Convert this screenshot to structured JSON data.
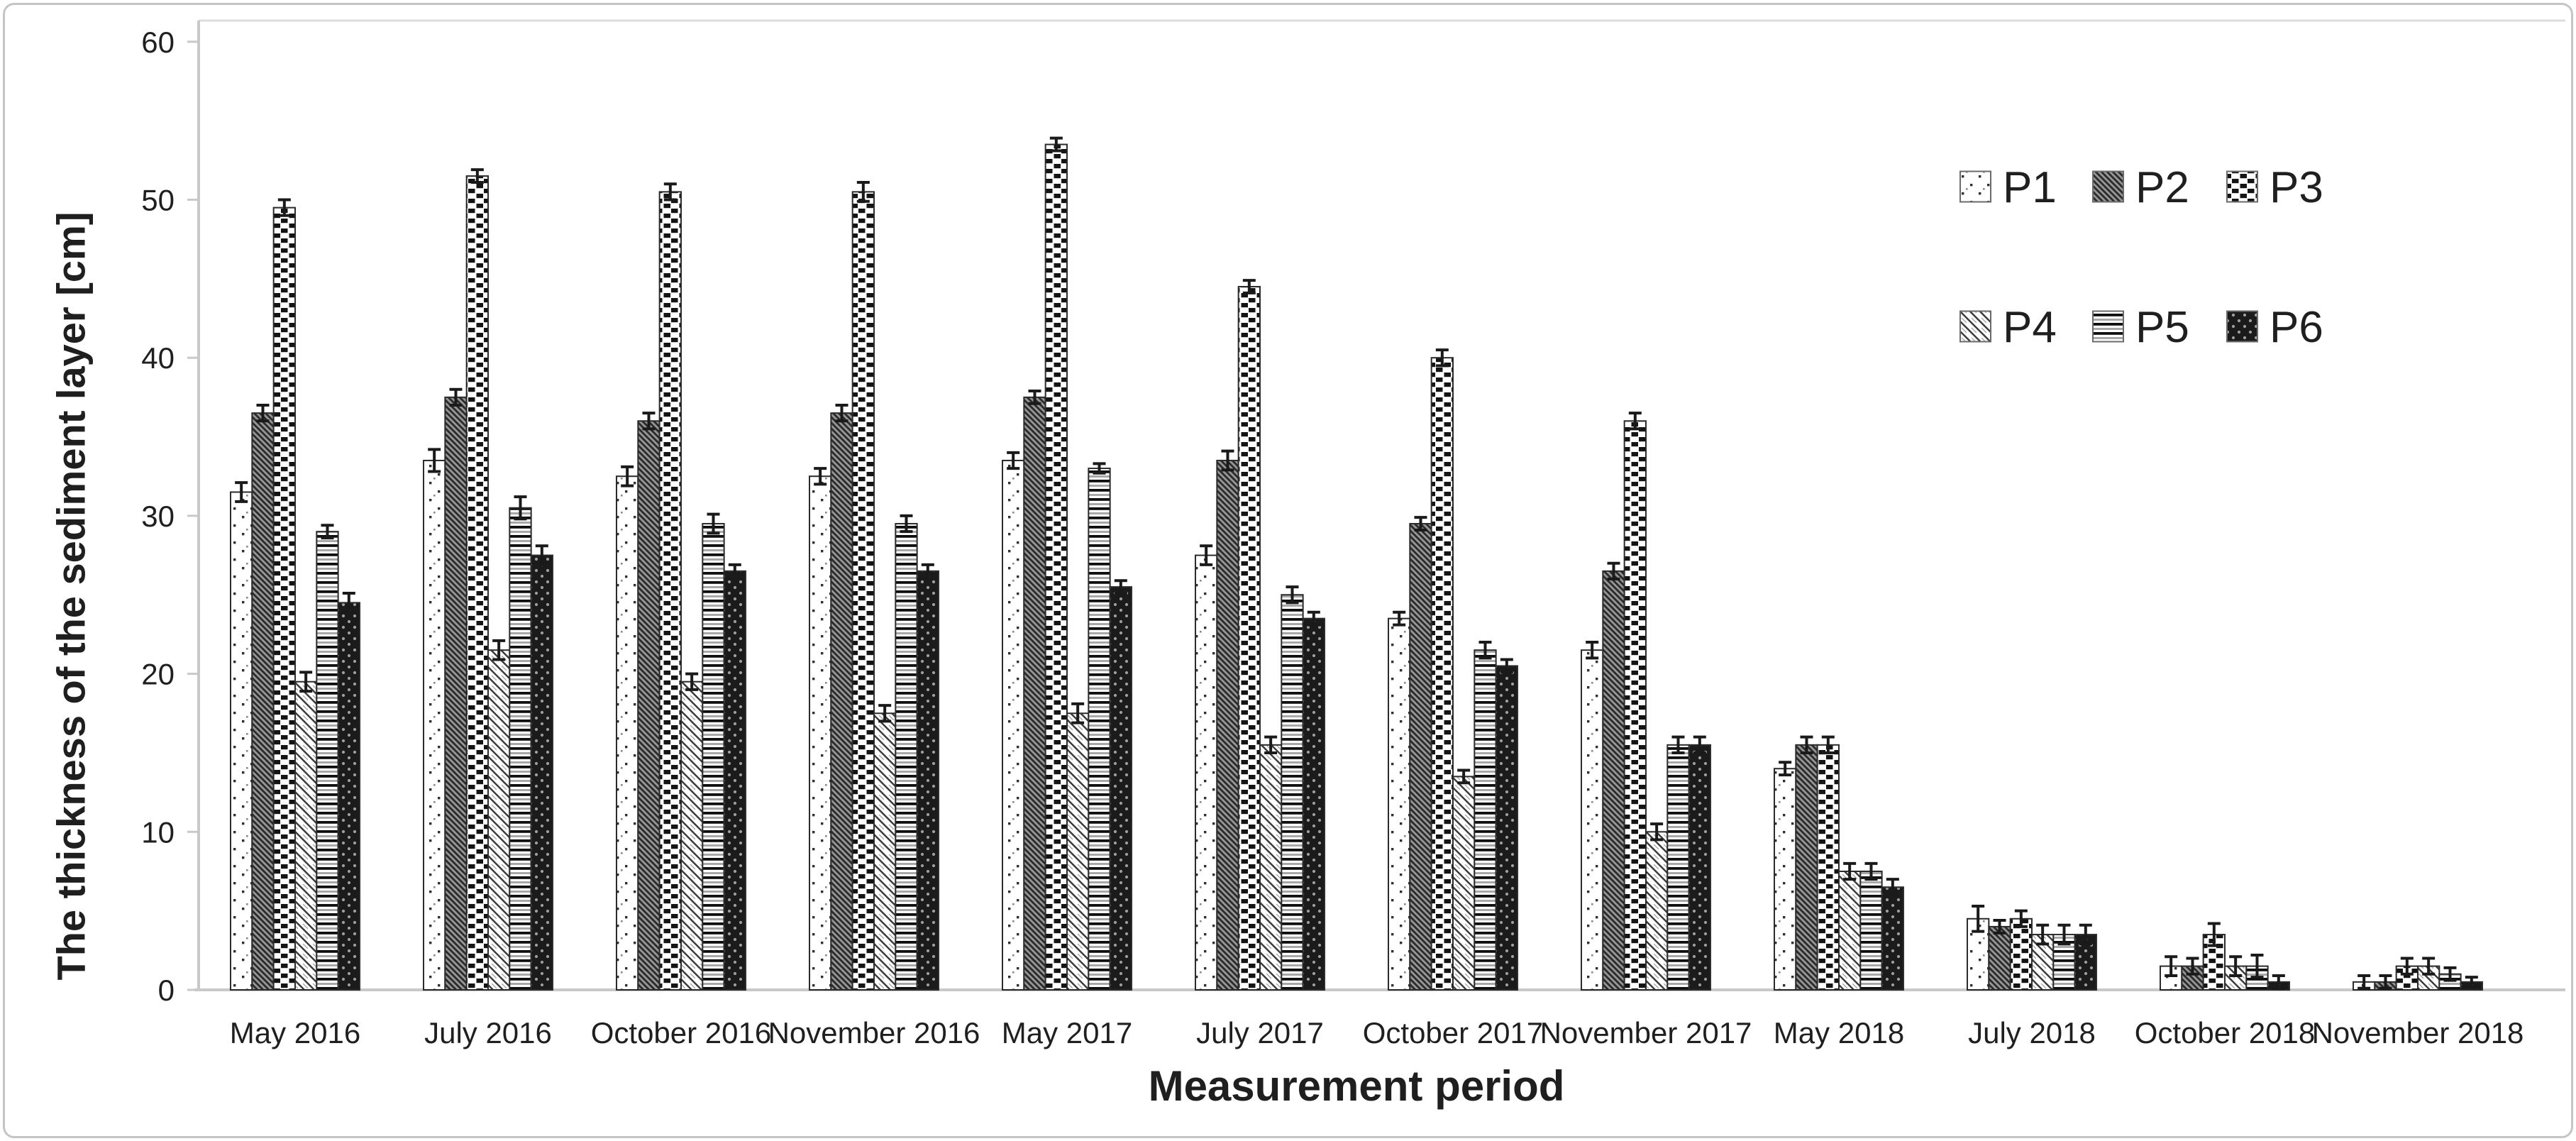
{
  "figure": {
    "background": "#ffffff",
    "border_color": "#c5c5c5"
  },
  "chart_data": {
    "type": "bar",
    "title": "",
    "xlabel": "Measurement period",
    "ylabel": "The thickness of the sediment layer [cm]",
    "ylim": [
      0,
      60
    ],
    "yticks": [
      0,
      10,
      20,
      30,
      40,
      50,
      60
    ],
    "grid": false,
    "error_bars": true,
    "legend_position": "top-right two rows",
    "legend_rows": [
      [
        "P1",
        "P2",
        "P3"
      ],
      [
        "P4",
        "P5",
        "P6"
      ]
    ],
    "categories": [
      "May 2016",
      "July 2016",
      "October 2016",
      "November 2016",
      "May 2017",
      "July 2017",
      "October 2017",
      "November 2017",
      "May 2018",
      "July 2018",
      "October 2018",
      "November 2018"
    ],
    "series": [
      {
        "name": "P1",
        "pattern": "sparse-dots-on-white",
        "values": [
          31.5,
          33.5,
          32.5,
          32.5,
          33.5,
          27.5,
          23.5,
          21.5,
          14,
          4.5,
          1.5,
          0.5
        ],
        "errors": [
          0.6,
          0.7,
          0.6,
          0.5,
          0.5,
          0.6,
          0.4,
          0.5,
          0.4,
          0.8,
          0.6,
          0.4
        ]
      },
      {
        "name": "P2",
        "pattern": "dark-gray-diagonal-weave",
        "values": [
          36.5,
          37.5,
          36,
          36.5,
          37.5,
          33.5,
          29.5,
          26.5,
          15.5,
          4,
          1.5,
          0.5
        ],
        "errors": [
          0.5,
          0.5,
          0.5,
          0.5,
          0.4,
          0.6,
          0.4,
          0.5,
          0.5,
          0.4,
          0.5,
          0.4
        ]
      },
      {
        "name": "P3",
        "pattern": "black-white-checkerboard",
        "values": [
          49.5,
          51.5,
          50.5,
          50.5,
          53.5,
          44.5,
          40,
          36,
          15.5,
          4.5,
          3.5,
          1.5
        ],
        "errors": [
          0.5,
          0.4,
          0.5,
          0.6,
          0.4,
          0.4,
          0.5,
          0.5,
          0.5,
          0.5,
          0.7,
          0.5
        ]
      },
      {
        "name": "P4",
        "pattern": "light-diagonal-stripes",
        "values": [
          19.5,
          21.5,
          19.5,
          17.5,
          17.5,
          15.5,
          13.5,
          10,
          7.5,
          3.5,
          1.5,
          1.5
        ],
        "errors": [
          0.6,
          0.6,
          0.5,
          0.5,
          0.6,
          0.5,
          0.4,
          0.5,
          0.5,
          0.6,
          0.6,
          0.5
        ]
      },
      {
        "name": "P5",
        "pattern": "horizontal-stripes",
        "values": [
          29,
          30.5,
          29.5,
          29.5,
          33,
          25,
          21.5,
          15.5,
          7.5,
          3.5,
          1.5,
          1
        ],
        "errors": [
          0.4,
          0.7,
          0.6,
          0.5,
          0.3,
          0.5,
          0.5,
          0.5,
          0.5,
          0.6,
          0.7,
          0.4
        ]
      },
      {
        "name": "P6",
        "pattern": "dark-with-dot-grid",
        "values": [
          24.5,
          27.5,
          26.5,
          26.5,
          25.5,
          23.5,
          20.5,
          15.5,
          6.5,
          3.5,
          0.5,
          0.5
        ],
        "errors": [
          0.6,
          0.6,
          0.4,
          0.4,
          0.4,
          0.4,
          0.4,
          0.5,
          0.5,
          0.6,
          0.4,
          0.3
        ]
      }
    ],
    "colors": {
      "ink": "#1f1f1f",
      "axis_line": "#c9c9c9",
      "plot_border": "#dcdcdc",
      "bar_outline": "#2b2b2b",
      "error_bar": "#1a1a1a"
    }
  }
}
